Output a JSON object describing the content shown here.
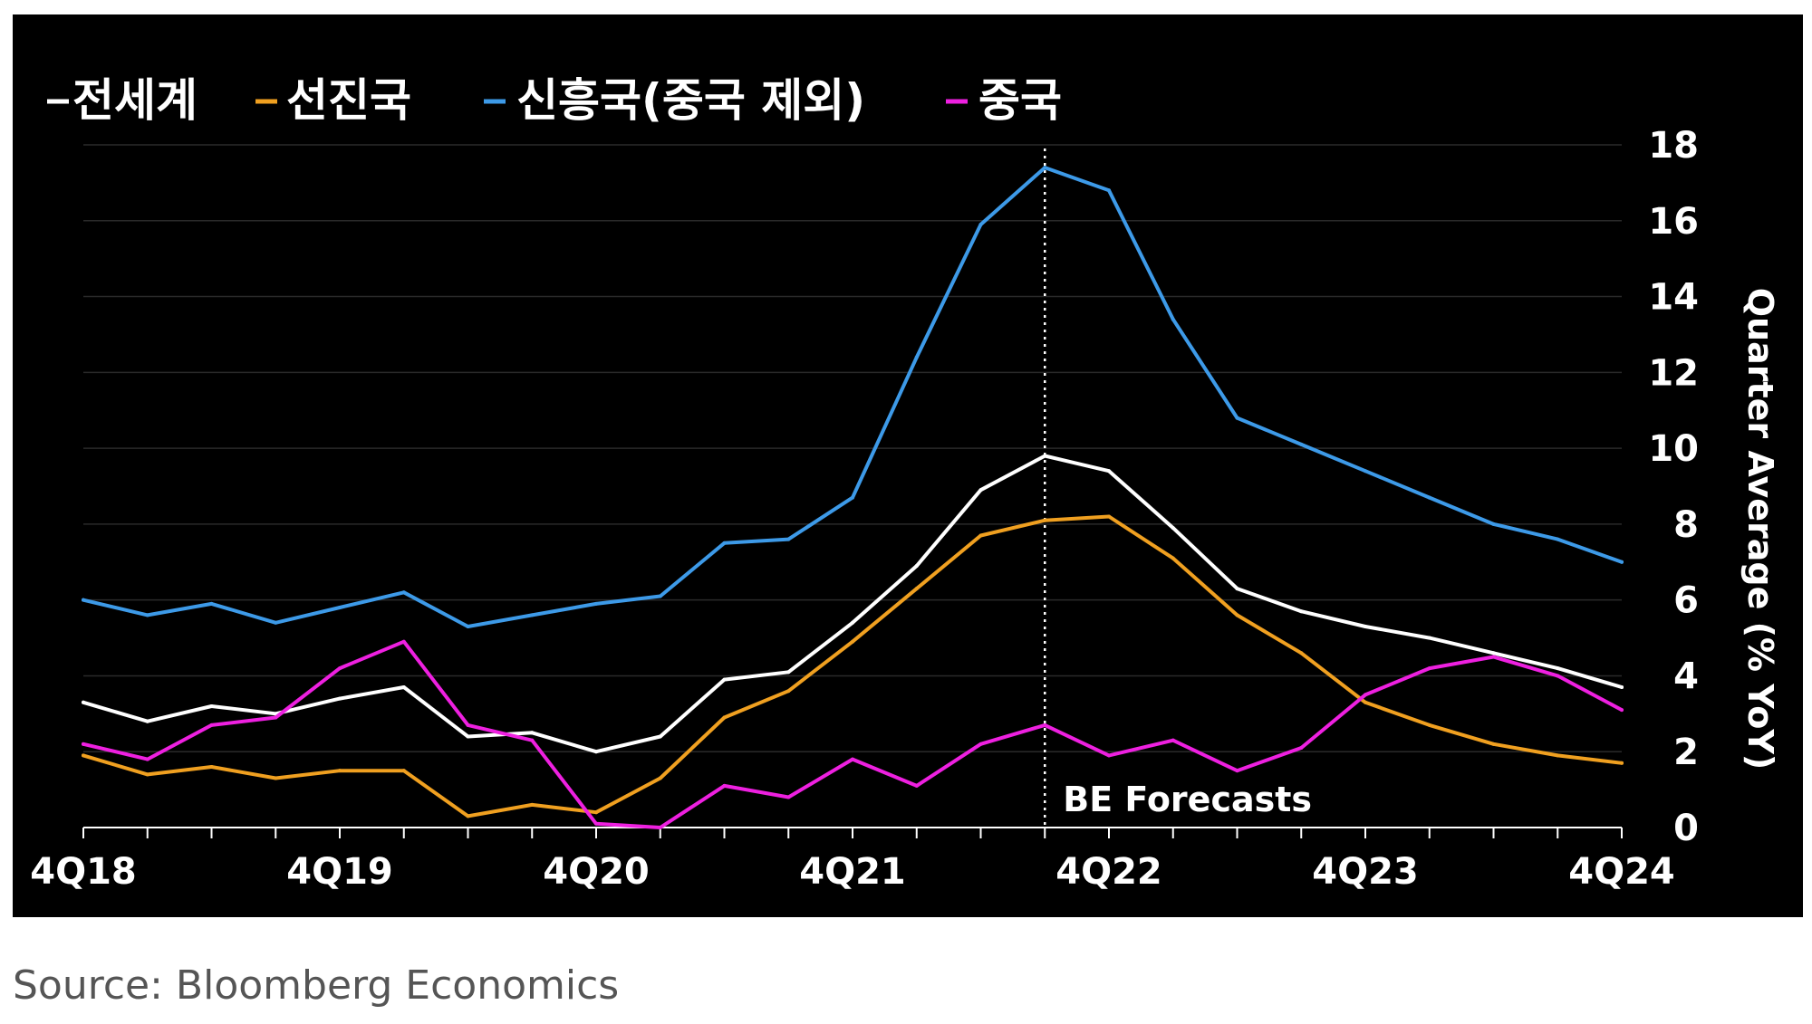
{
  "chart_data": {
    "type": "line",
    "x": [
      "4Q18",
      "1Q19",
      "2Q19",
      "3Q19",
      "4Q19",
      "1Q20",
      "2Q20",
      "3Q20",
      "4Q20",
      "1Q21",
      "2Q21",
      "3Q21",
      "4Q21",
      "1Q22",
      "2Q22",
      "3Q22",
      "4Q22",
      "1Q23",
      "2Q23",
      "3Q23",
      "4Q23",
      "1Q24",
      "2Q24",
      "3Q24",
      "4Q24"
    ],
    "xtick_labels": [
      "4Q18",
      "4Q19",
      "4Q20",
      "4Q21",
      "4Q22",
      "4Q23",
      "4Q24"
    ],
    "ylabel": "Quarter Average (% YoY)",
    "ylim": [
      0,
      18
    ],
    "yticks": [
      0,
      2,
      4,
      6,
      8,
      10,
      12,
      14,
      16,
      18
    ],
    "grid": true,
    "legend_position": "top-left",
    "series": [
      {
        "name": "전세계",
        "color": "#ffffff",
        "values": [
          3.3,
          2.8,
          3.2,
          3.0,
          3.4,
          3.7,
          2.4,
          2.5,
          2.0,
          2.4,
          3.9,
          4.1,
          5.4,
          6.9,
          8.9,
          9.8,
          9.4,
          7.9,
          6.3,
          5.7,
          5.3,
          5.0,
          4.6,
          4.2,
          3.7
        ]
      },
      {
        "name": "선진국",
        "color": "#f0a020",
        "values": [
          1.9,
          1.4,
          1.6,
          1.3,
          1.5,
          1.5,
          0.3,
          0.6,
          0.4,
          1.3,
          2.9,
          3.6,
          4.9,
          6.3,
          7.7,
          8.1,
          8.2,
          7.1,
          5.6,
          4.6,
          3.3,
          2.7,
          2.2,
          1.9,
          1.7
        ]
      },
      {
        "name": "신흥국(중국 제외)",
        "color": "#3d9ae8",
        "values": [
          6.0,
          5.6,
          5.9,
          5.4,
          5.8,
          6.2,
          5.3,
          5.6,
          5.9,
          6.1,
          7.5,
          7.6,
          8.7,
          12.4,
          15.9,
          17.4,
          16.8,
          13.4,
          10.8,
          10.1,
          9.4,
          8.7,
          8.0,
          7.6,
          7.0
        ]
      },
      {
        "name": "중국",
        "color": "#ee20e0",
        "values": [
          2.2,
          1.8,
          2.7,
          2.9,
          4.2,
          4.9,
          2.7,
          2.3,
          0.1,
          0.0,
          1.1,
          0.8,
          1.8,
          1.1,
          2.2,
          2.7,
          1.9,
          2.3,
          1.5,
          2.1,
          3.5,
          4.2,
          4.5,
          4.0,
          3.1
        ]
      }
    ],
    "annotations": [
      {
        "text": "BE Forecasts",
        "x": "3Q22"
      }
    ]
  },
  "legend": {
    "items": [
      {
        "label": "전세계",
        "color": "#ffffff"
      },
      {
        "label": "선진국",
        "color": "#f0a020"
      },
      {
        "label": "신흥국(중국 제외)",
        "color": "#3d9ae8"
      },
      {
        "label": "중국",
        "color": "#ee20e0"
      }
    ]
  },
  "source": "Source: Bloomberg Economics"
}
